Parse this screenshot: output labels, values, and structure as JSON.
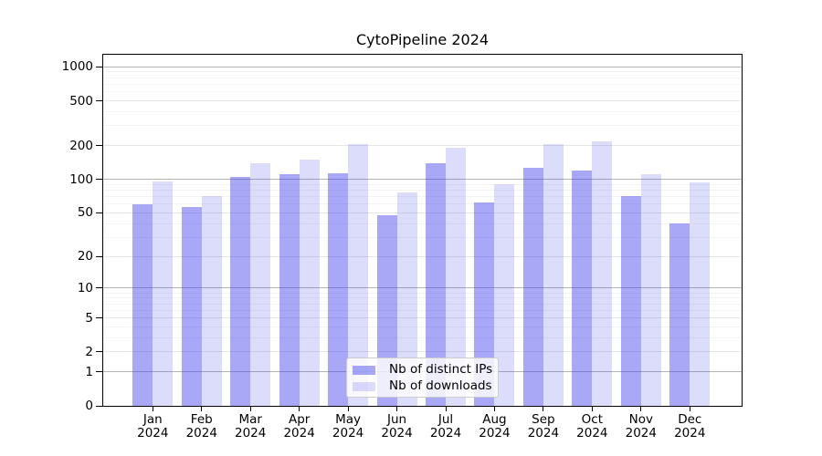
{
  "chart_data": {
    "type": "bar",
    "title": "CytoPipeline 2024",
    "categories": [
      "Jan",
      "Feb",
      "Mar",
      "Apr",
      "May",
      "Jun",
      "Jul",
      "Aug",
      "Sep",
      "Oct",
      "Nov",
      "Dec"
    ],
    "category_year": "2024",
    "series": [
      {
        "name": "Nb of distinct IPs",
        "color": "rgba(62,62,235,0.45)",
        "values": [
          60,
          56,
          105,
          112,
          113,
          48,
          139,
          62,
          127,
          119,
          71,
          40
        ]
      },
      {
        "name": "Nb of downloads",
        "color": "rgba(62,62,235,0.18)",
        "values": [
          95,
          71,
          139,
          150,
          205,
          76,
          193,
          90,
          205,
          220,
          112,
          94
        ]
      }
    ],
    "xlabel": "",
    "ylabel": "",
    "yscale": "log1p",
    "ylim": [
      0,
      1280
    ],
    "yticks": [
      0,
      1,
      2,
      5,
      10,
      20,
      50,
      100,
      200,
      500,
      1000
    ],
    "yticks_major": [
      1,
      10,
      100,
      1000
    ],
    "yticks_minor": [
      3,
      4,
      6,
      7,
      8,
      9,
      30,
      40,
      60,
      70,
      80,
      90,
      300,
      400,
      600,
      700,
      800,
      900
    ],
    "grid": true,
    "legend_position": "lower center",
    "colors": {
      "major_grid": "#b4b4b4",
      "labeled_grid": "#e6e6e6",
      "minor_grid": "#f3f3f3",
      "spine": "#000000",
      "legend_border": "#cccccc",
      "text": "#000000"
    }
  }
}
